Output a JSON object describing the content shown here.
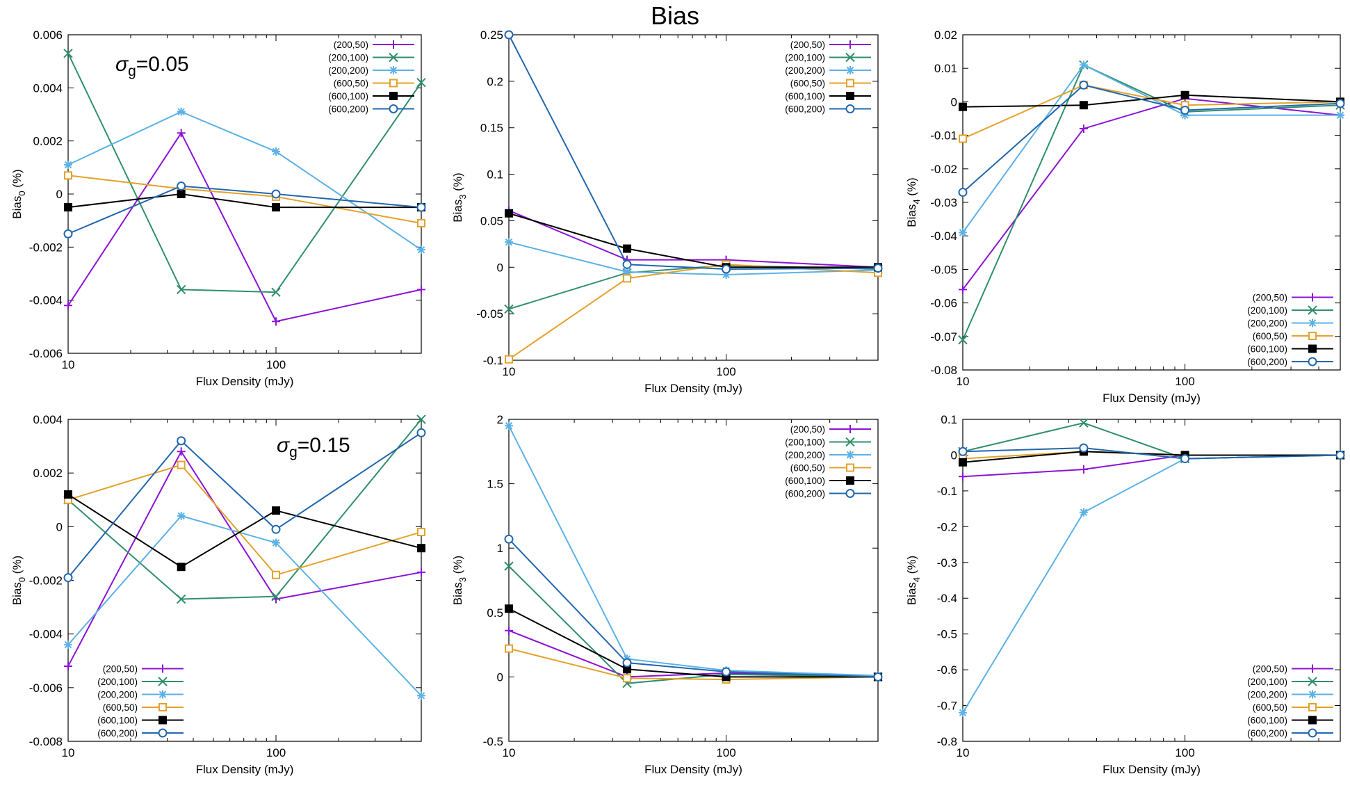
{
  "title": "Bias",
  "colors": {
    "(200,50)": "#8c12d6",
    "(200,100)": "#2f8f6b",
    "(200,200)": "#5cb1e6",
    "(600,50)": "#e3a22a",
    "(600,100)": "#000000",
    "(600,200)": "#2167ae"
  },
  "chart_data": [
    {
      "type": "line",
      "title": "",
      "annotation": {
        "symbol": "σ",
        "sub": "g",
        "rest": "=0.05"
      },
      "xlabel": "Flux Density (mJy)",
      "ylabel": {
        "base": "Bias",
        "sub": "0",
        "rest": " (%)"
      },
      "xscale": "log",
      "xlim": [
        10,
        500
      ],
      "xticks": [
        10,
        100
      ],
      "x": [
        10,
        35,
        100,
        500
      ],
      "ylim": [
        -0.006,
        0.006
      ],
      "yticks": [
        "-0.006",
        "-0.004",
        "-0.002",
        "0",
        "0.002",
        "0.004",
        "0.006"
      ],
      "legend_pos": "top-right",
      "series": [
        {
          "name": "(200,50)",
          "marker": "plus",
          "values": [
            -0.0042,
            0.0023,
            -0.0048,
            -0.0036
          ]
        },
        {
          "name": "(200,100)",
          "marker": "cross",
          "values": [
            0.0053,
            -0.0036,
            -0.0037,
            0.0042
          ]
        },
        {
          "name": "(200,200)",
          "marker": "star",
          "values": [
            0.0011,
            0.0031,
            0.0016,
            -0.0021
          ]
        },
        {
          "name": "(600,50)",
          "marker": "square-open",
          "values": [
            0.0007,
            0.0002,
            -0.0001,
            -0.0011
          ]
        },
        {
          "name": "(600,100)",
          "marker": "square-filled",
          "values": [
            -0.0005,
            0.0,
            -0.0005,
            -0.0005
          ]
        },
        {
          "name": "(600,200)",
          "marker": "circle-open",
          "values": [
            -0.0015,
            0.0003,
            0.0,
            -0.0005
          ]
        }
      ]
    },
    {
      "type": "line",
      "title": "",
      "annotation": null,
      "xlabel": "Flux Density (mJy)",
      "ylabel": {
        "base": "Bias",
        "sub": "3",
        "rest": " (%)"
      },
      "xscale": "log",
      "xlim": [
        10,
        500
      ],
      "xticks": [
        10,
        100
      ],
      "x": [
        10,
        35,
        100,
        500
      ],
      "ylim": [
        -0.1,
        0.25
      ],
      "yticks": [
        "-0.1",
        "-0.05",
        "0",
        "0.05",
        "0.1",
        "0.15",
        "0.2",
        "0.25"
      ],
      "legend_pos": "top-right",
      "series": [
        {
          "name": "(200,50)",
          "marker": "plus",
          "values": [
            0.061,
            0.008,
            0.008,
            0.0
          ]
        },
        {
          "name": "(200,100)",
          "marker": "cross",
          "values": [
            -0.045,
            -0.006,
            0.002,
            -0.002
          ]
        },
        {
          "name": "(200,200)",
          "marker": "star",
          "values": [
            0.027,
            -0.005,
            -0.008,
            -0.003
          ]
        },
        {
          "name": "(600,50)",
          "marker": "square-open",
          "values": [
            -0.099,
            -0.012,
            0.003,
            -0.006
          ]
        },
        {
          "name": "(600,100)",
          "marker": "square-filled",
          "values": [
            0.058,
            0.02,
            0.0,
            0.0
          ]
        },
        {
          "name": "(600,200)",
          "marker": "circle-open",
          "values": [
            0.25,
            0.003,
            -0.002,
            -0.001
          ]
        }
      ]
    },
    {
      "type": "line",
      "title": "",
      "annotation": null,
      "xlabel": "Flux Density (mJy)",
      "ylabel": {
        "base": "Bias",
        "sub": "4",
        "rest": " (%)"
      },
      "xscale": "log",
      "xlim": [
        10,
        500
      ],
      "xticks": [
        10,
        100
      ],
      "x": [
        10,
        35,
        100,
        500
      ],
      "ylim": [
        -0.08,
        0.02
      ],
      "yticks": [
        "-0.08",
        "-0.07",
        "-0.06",
        "-0.05",
        "-0.04",
        "-0.03",
        "-0.02",
        "-0.01",
        "0",
        "0.01",
        "0.02"
      ],
      "legend_pos": "bottom-right",
      "series": [
        {
          "name": "(200,50)",
          "marker": "plus",
          "values": [
            -0.056,
            -0.008,
            0.001,
            -0.004
          ]
        },
        {
          "name": "(200,100)",
          "marker": "cross",
          "values": [
            -0.071,
            0.011,
            -0.003,
            -0.001
          ]
        },
        {
          "name": "(200,200)",
          "marker": "star",
          "values": [
            -0.039,
            0.011,
            -0.004,
            -0.004
          ]
        },
        {
          "name": "(600,50)",
          "marker": "square-open",
          "values": [
            -0.011,
            0.005,
            -0.001,
            0.0
          ]
        },
        {
          "name": "(600,100)",
          "marker": "square-filled",
          "values": [
            -0.0015,
            -0.001,
            0.002,
            0.0
          ]
        },
        {
          "name": "(600,200)",
          "marker": "circle-open",
          "values": [
            -0.027,
            0.005,
            -0.0025,
            -0.0005
          ]
        }
      ]
    },
    {
      "type": "line",
      "title": "",
      "annotation": {
        "symbol": "σ",
        "sub": "g",
        "rest": "=0.15"
      },
      "xlabel": "Flux Density (mJy)",
      "ylabel": {
        "base": "Bias",
        "sub": "0",
        "rest": " (%)"
      },
      "xscale": "log",
      "xlim": [
        10,
        500
      ],
      "xticks": [
        10,
        100
      ],
      "x": [
        10,
        35,
        100,
        500
      ],
      "ylim": [
        -0.008,
        0.004
      ],
      "yticks": [
        "-0.008",
        "-0.006",
        "-0.004",
        "-0.002",
        "0",
        "0.002",
        "0.004"
      ],
      "legend_pos": "bottom-left",
      "series": [
        {
          "name": "(200,50)",
          "marker": "plus",
          "values": [
            -0.0052,
            0.0028,
            -0.0027,
            -0.0017
          ]
        },
        {
          "name": "(200,100)",
          "marker": "cross",
          "values": [
            0.001,
            -0.0027,
            -0.0026,
            0.004
          ]
        },
        {
          "name": "(200,200)",
          "marker": "star",
          "values": [
            -0.0044,
            0.0004,
            -0.0006,
            -0.0063
          ]
        },
        {
          "name": "(600,50)",
          "marker": "square-open",
          "values": [
            0.001,
            0.0023,
            -0.0018,
            -0.0002
          ]
        },
        {
          "name": "(600,100)",
          "marker": "square-filled",
          "values": [
            0.0012,
            -0.0015,
            0.0006,
            -0.0008
          ]
        },
        {
          "name": "(600,200)",
          "marker": "circle-open",
          "values": [
            -0.0019,
            0.0032,
            -0.0001,
            0.0035
          ]
        }
      ]
    },
    {
      "type": "line",
      "title": "",
      "annotation": null,
      "xlabel": "Flux Density (mJy)",
      "ylabel": {
        "base": "Bias",
        "sub": "3",
        "rest": " (%)"
      },
      "xscale": "log",
      "xlim": [
        10,
        500
      ],
      "xticks": [
        10,
        100
      ],
      "x": [
        10,
        35,
        100,
        500
      ],
      "ylim": [
        -0.5,
        2
      ],
      "yticks": [
        "-0.5",
        "0",
        "0.5",
        "1",
        "1.5",
        "2"
      ],
      "legend_pos": "top-right",
      "series": [
        {
          "name": "(200,50)",
          "marker": "plus",
          "values": [
            0.36,
            0.0,
            0.03,
            0.0
          ]
        },
        {
          "name": "(200,100)",
          "marker": "cross",
          "values": [
            0.86,
            -0.05,
            0.02,
            0.0
          ]
        },
        {
          "name": "(200,200)",
          "marker": "star",
          "values": [
            1.95,
            0.14,
            0.05,
            0.01
          ]
        },
        {
          "name": "(600,50)",
          "marker": "square-open",
          "values": [
            0.22,
            -0.01,
            -0.02,
            0.0
          ]
        },
        {
          "name": "(600,100)",
          "marker": "square-filled",
          "values": [
            0.53,
            0.06,
            0.0,
            0.0
          ]
        },
        {
          "name": "(600,200)",
          "marker": "circle-open",
          "values": [
            1.07,
            0.11,
            0.04,
            0.0
          ]
        }
      ]
    },
    {
      "type": "line",
      "title": "",
      "annotation": null,
      "xlabel": "Flux Density (mJy)",
      "ylabel": {
        "base": "Bias",
        "sub": "4",
        "rest": " (%)"
      },
      "xscale": "log",
      "xlim": [
        10,
        500
      ],
      "xticks": [
        10,
        100
      ],
      "x": [
        10,
        35,
        100,
        500
      ],
      "ylim": [
        -0.8,
        0.1
      ],
      "yticks": [
        "-0.8",
        "-0.7",
        "-0.6",
        "-0.5",
        "-0.4",
        "-0.3",
        "-0.2",
        "-0.1",
        "0",
        "0.1"
      ],
      "legend_pos": "bottom-right",
      "series": [
        {
          "name": "(200,50)",
          "marker": "plus",
          "values": [
            -0.06,
            -0.04,
            0.0,
            0.0
          ]
        },
        {
          "name": "(200,100)",
          "marker": "cross",
          "values": [
            0.01,
            0.09,
            -0.01,
            0.0
          ]
        },
        {
          "name": "(200,200)",
          "marker": "star",
          "values": [
            -0.72,
            -0.16,
            -0.01,
            0.0
          ]
        },
        {
          "name": "(600,50)",
          "marker": "square-open",
          "values": [
            -0.01,
            0.01,
            0.0,
            0.0
          ]
        },
        {
          "name": "(600,100)",
          "marker": "square-filled",
          "values": [
            -0.02,
            0.01,
            0.0,
            0.0
          ]
        },
        {
          "name": "(600,200)",
          "marker": "circle-open",
          "values": [
            0.01,
            0.02,
            -0.01,
            0.0
          ]
        }
      ]
    }
  ]
}
